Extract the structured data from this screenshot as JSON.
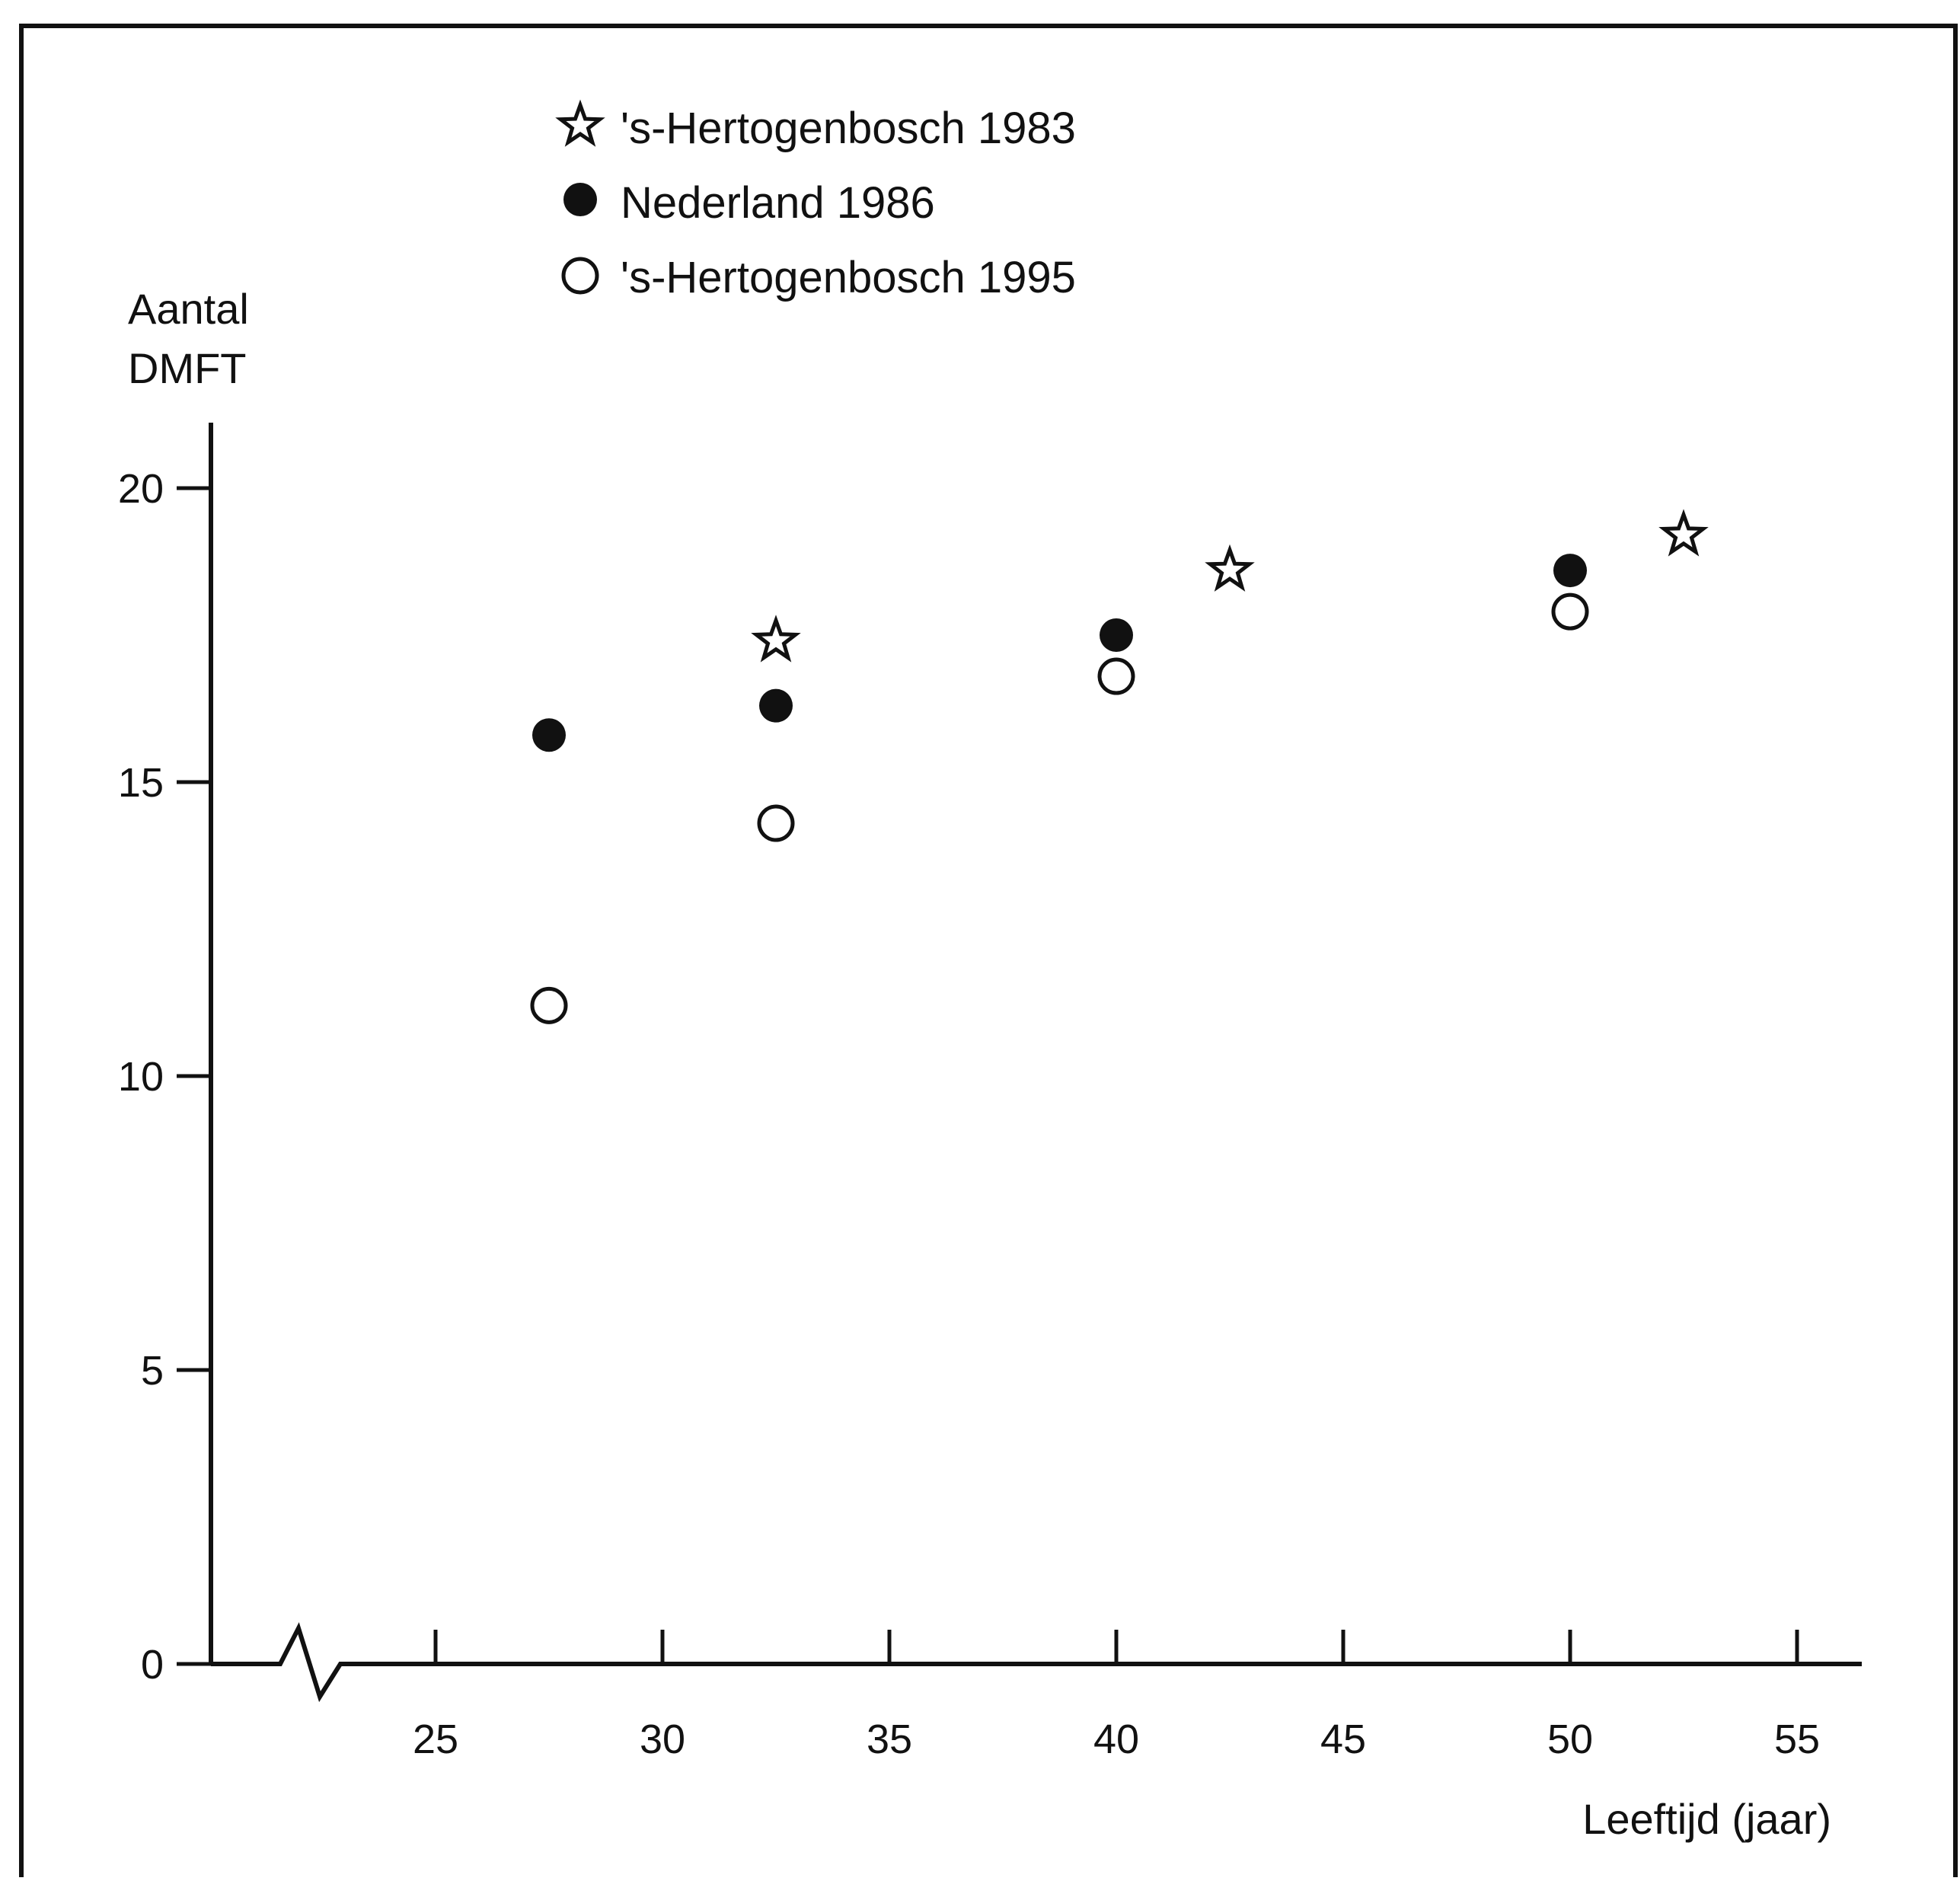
{
  "chart_data": {
    "type": "scatter",
    "ylabel_lines": [
      "Aantal",
      "DMFT"
    ],
    "xlabel": "Leeftijd (jaar)",
    "xlim": [
      20,
      57
    ],
    "ylim": [
      0,
      21
    ],
    "x_ticks": [
      25,
      30,
      35,
      40,
      45,
      50,
      55
    ],
    "y_ticks": [
      0,
      5,
      10,
      15,
      20
    ],
    "x_axis_break": true,
    "grid": false,
    "legend_position": "top-center",
    "colors": {
      "ink": "#111111",
      "background": "#ffffff"
    },
    "series": [
      {
        "name": "'s-Hertogenbosch 1983",
        "marker": "star",
        "points": [
          {
            "x": 32.5,
            "y": 17.4
          },
          {
            "x": 42.5,
            "y": 18.6
          },
          {
            "x": 52.5,
            "y": 19.2
          }
        ]
      },
      {
        "name": "Nederland 1986",
        "marker": "filled-circle",
        "points": [
          {
            "x": 27.5,
            "y": 15.8
          },
          {
            "x": 32.5,
            "y": 16.3
          },
          {
            "x": 40,
            "y": 17.5
          },
          {
            "x": 50,
            "y": 18.6
          }
        ]
      },
      {
        "name": "'s-Hertogenbosch 1995",
        "marker": "open-circle",
        "points": [
          {
            "x": 27.5,
            "y": 11.2
          },
          {
            "x": 32.5,
            "y": 14.3
          },
          {
            "x": 40,
            "y": 16.8
          },
          {
            "x": 50,
            "y": 17.9
          }
        ]
      }
    ]
  }
}
